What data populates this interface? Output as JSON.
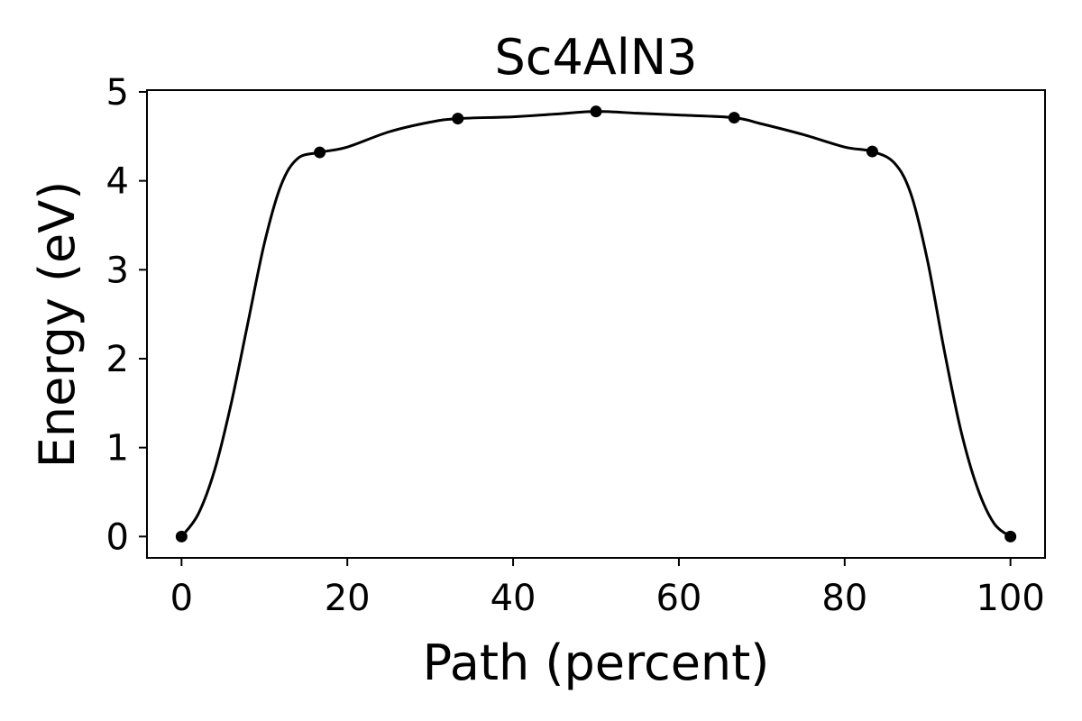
{
  "chart_data": {
    "type": "line",
    "title": "Sc4AlN3",
    "xlabel": "Path (percent)",
    "ylabel": "Energy (eV)",
    "xlim": [
      -4.17,
      104.17
    ],
    "ylim": [
      -0.24,
      5.02
    ],
    "xticks": [
      0,
      20,
      40,
      60,
      80,
      100
    ],
    "yticks": [
      0,
      1,
      2,
      3,
      4,
      5
    ],
    "grid": false,
    "points": {
      "x": [
        0,
        16.67,
        33.33,
        50,
        66.67,
        83.33,
        100
      ],
      "y": [
        0,
        4.32,
        4.7,
        4.78,
        4.71,
        4.33,
        0
      ]
    },
    "curve": {
      "x": [
        0,
        2,
        4,
        6,
        8,
        10,
        12,
        14,
        16.67,
        20,
        25,
        30,
        33.33,
        40,
        45,
        50,
        55,
        60,
        66.67,
        70,
        75,
        80,
        83.33,
        86,
        88,
        90,
        92,
        94,
        96,
        98,
        100
      ],
      "y": [
        0,
        0.25,
        0.75,
        1.5,
        2.4,
        3.3,
        3.95,
        4.25,
        4.32,
        4.38,
        4.55,
        4.66,
        4.7,
        4.72,
        4.75,
        4.78,
        4.76,
        4.74,
        4.71,
        4.64,
        4.52,
        4.38,
        4.33,
        4.2,
        3.85,
        3.1,
        2.1,
        1.2,
        0.55,
        0.15,
        0
      ]
    },
    "color": "#000000"
  }
}
